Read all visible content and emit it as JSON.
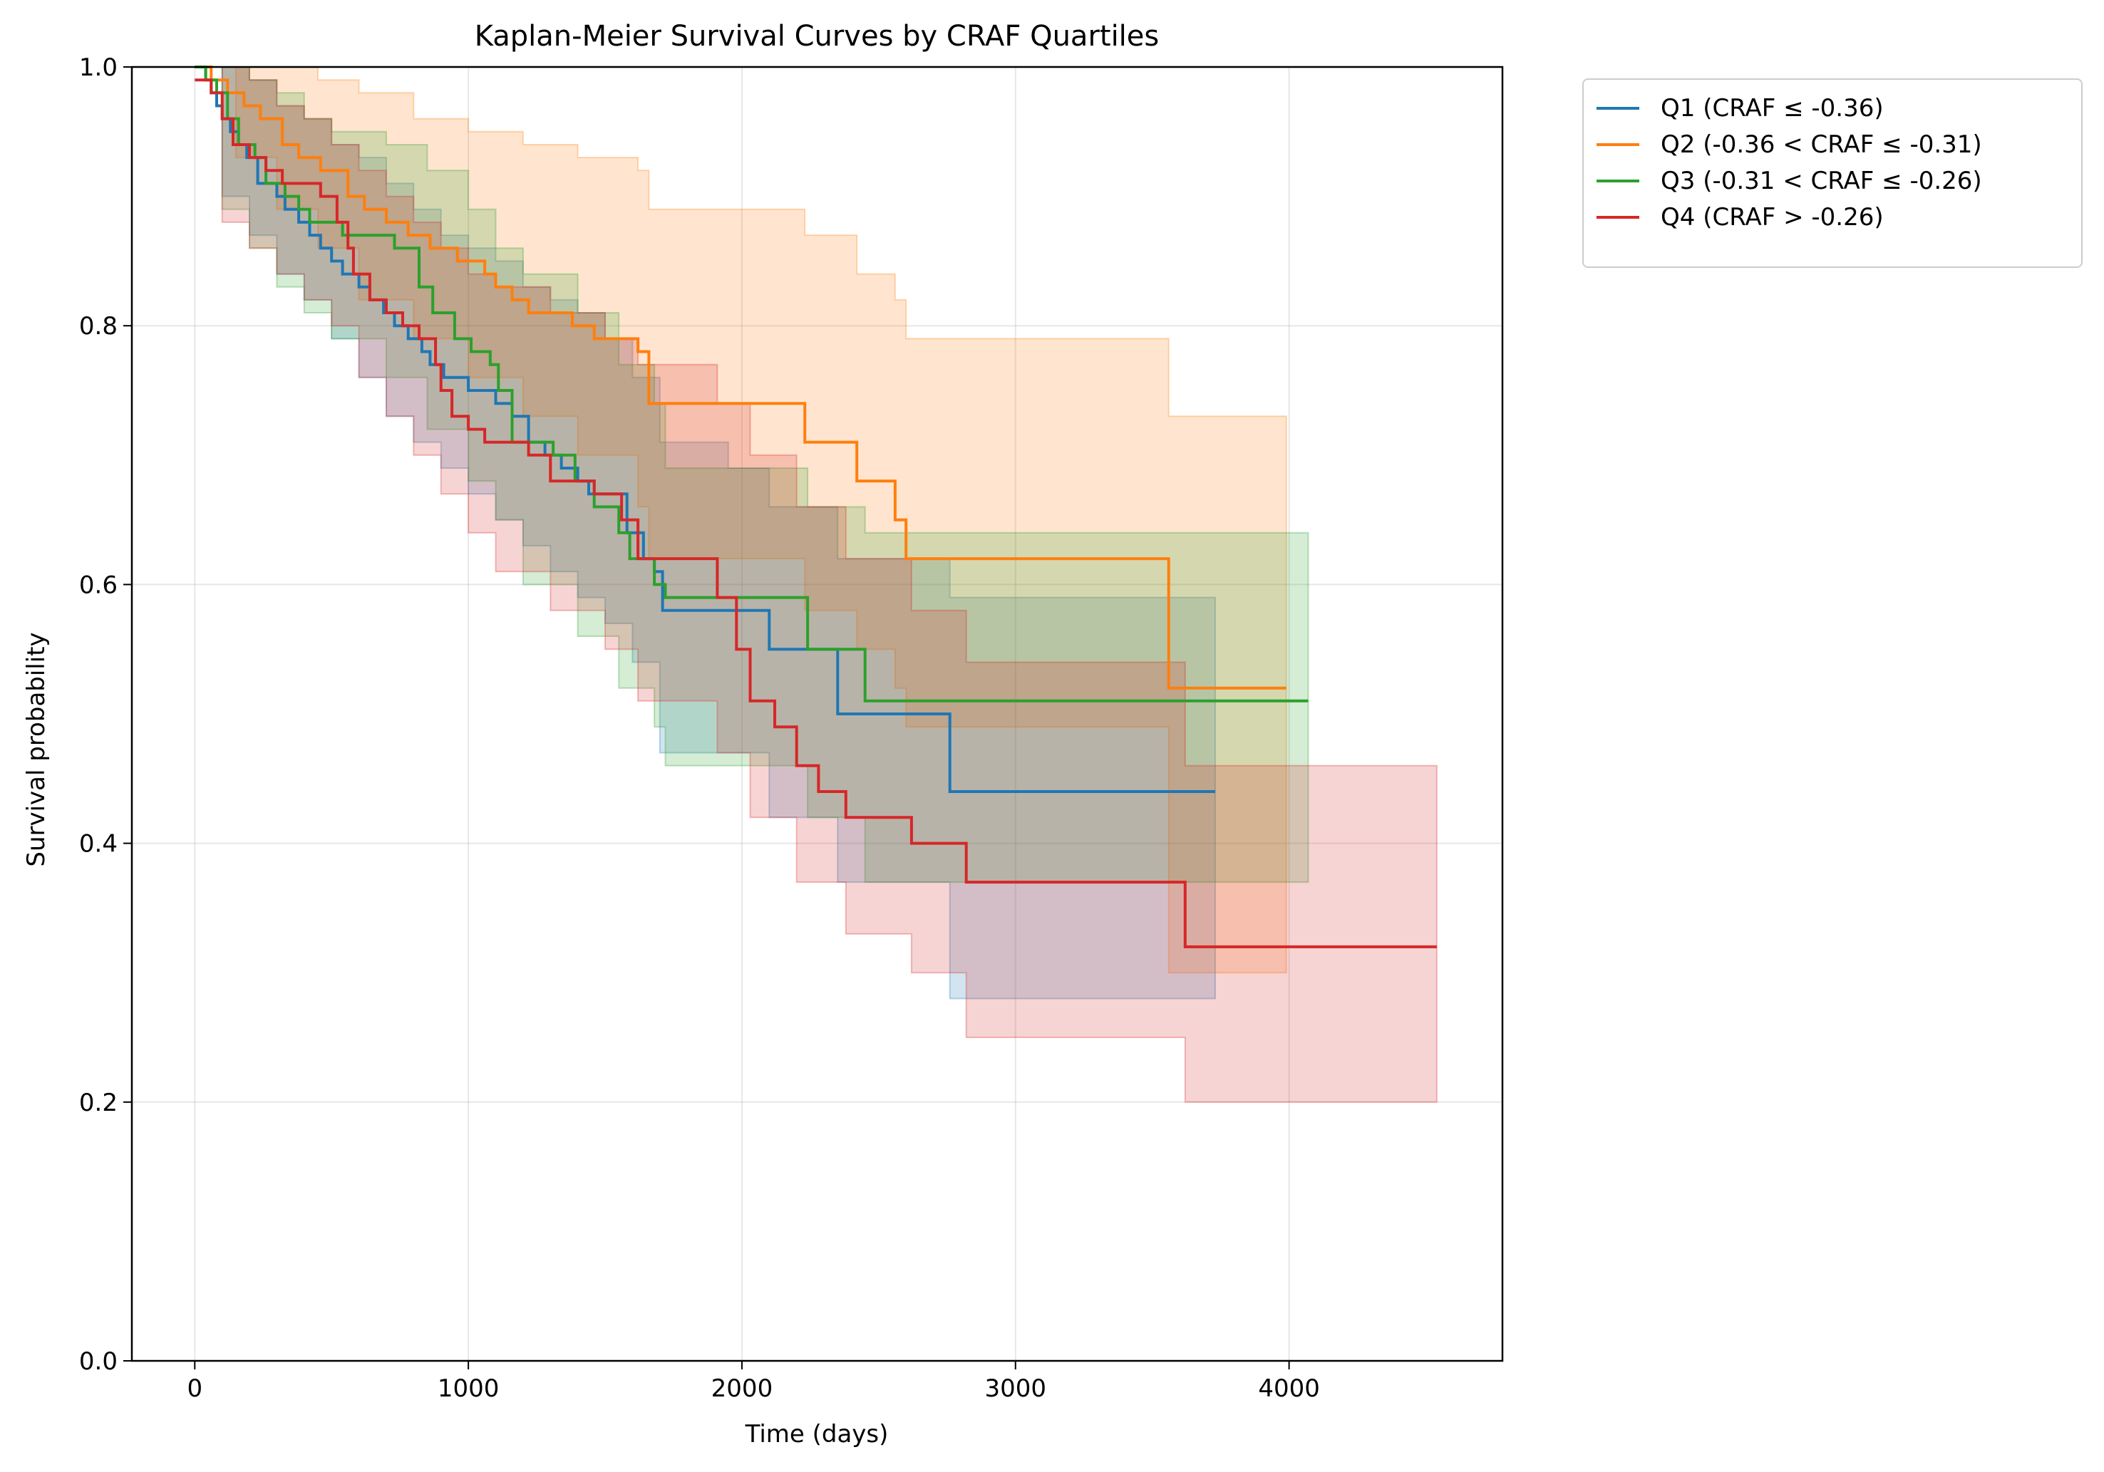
{
  "chart_data": {
    "type": "line",
    "title": "Kaplan-Meier Survival Curves by CRAF Quartiles",
    "xlabel": "Time (days)",
    "ylabel": "Survival probability",
    "xlim": [
      -230,
      4780
    ],
    "ylim": [
      0.0,
      1.0
    ],
    "xticks": [
      "0",
      "1000",
      "2000",
      "3000",
      "4000"
    ],
    "yticks": [
      "0.0",
      "0.2",
      "0.4",
      "0.6",
      "0.8",
      "1.0"
    ],
    "grid": true,
    "legend_position": "outside-top-right",
    "series": [
      {
        "name": "Q1 (CRAF ≤ -0.36)",
        "color": "#1f77b4",
        "steps": [
          [
            0,
            1.0
          ],
          [
            40,
            0.99
          ],
          [
            60,
            0.98
          ],
          [
            80,
            0.97
          ],
          [
            100,
            0.96
          ],
          [
            130,
            0.95
          ],
          [
            160,
            0.94
          ],
          [
            190,
            0.93
          ],
          [
            230,
            0.91
          ],
          [
            300,
            0.9
          ],
          [
            330,
            0.89
          ],
          [
            380,
            0.88
          ],
          [
            420,
            0.87
          ],
          [
            460,
            0.86
          ],
          [
            500,
            0.85
          ],
          [
            540,
            0.84
          ],
          [
            600,
            0.83
          ],
          [
            640,
            0.82
          ],
          [
            690,
            0.81
          ],
          [
            730,
            0.8
          ],
          [
            780,
            0.79
          ],
          [
            830,
            0.78
          ],
          [
            860,
            0.77
          ],
          [
            910,
            0.76
          ],
          [
            1000,
            0.75
          ],
          [
            1100,
            0.74
          ],
          [
            1160,
            0.73
          ],
          [
            1220,
            0.71
          ],
          [
            1280,
            0.7
          ],
          [
            1340,
            0.69
          ],
          [
            1400,
            0.68
          ],
          [
            1440,
            0.67
          ],
          [
            1580,
            0.64
          ],
          [
            1640,
            0.62
          ],
          [
            1680,
            0.61
          ],
          [
            1710,
            0.58
          ],
          [
            1950,
            0.58
          ],
          [
            2100,
            0.55
          ],
          [
            2350,
            0.5
          ],
          [
            2760,
            0.44
          ],
          [
            3730,
            0.44
          ]
        ],
        "ci_steps": [
          [
            0,
            1.0,
            1.0
          ],
          [
            100,
            1.0,
            0.9
          ],
          [
            200,
            0.99,
            0.87
          ],
          [
            300,
            0.97,
            0.84
          ],
          [
            400,
            0.96,
            0.82
          ],
          [
            500,
            0.94,
            0.79
          ],
          [
            600,
            0.93,
            0.76
          ],
          [
            700,
            0.91,
            0.73
          ],
          [
            800,
            0.89,
            0.71
          ],
          [
            900,
            0.87,
            0.69
          ],
          [
            1000,
            0.86,
            0.67
          ],
          [
            1100,
            0.85,
            0.65
          ],
          [
            1200,
            0.83,
            0.63
          ],
          [
            1300,
            0.82,
            0.61
          ],
          [
            1400,
            0.81,
            0.59
          ],
          [
            1500,
            0.79,
            0.57
          ],
          [
            1600,
            0.76,
            0.54
          ],
          [
            1700,
            0.71,
            0.47
          ],
          [
            1950,
            0.69,
            0.47
          ],
          [
            2100,
            0.66,
            0.42
          ],
          [
            2350,
            0.62,
            0.37
          ],
          [
            2760,
            0.59,
            0.28
          ],
          [
            3730,
            0.59,
            0.28
          ]
        ]
      },
      {
        "name": "Q2 (-0.36 < CRAF ≤ -0.31)",
        "color": "#ff7f0e",
        "steps": [
          [
            0,
            1.0
          ],
          [
            60,
            0.99
          ],
          [
            120,
            0.98
          ],
          [
            180,
            0.97
          ],
          [
            240,
            0.96
          ],
          [
            320,
            0.94
          ],
          [
            380,
            0.93
          ],
          [
            460,
            0.92
          ],
          [
            560,
            0.9
          ],
          [
            620,
            0.89
          ],
          [
            700,
            0.88
          ],
          [
            780,
            0.87
          ],
          [
            860,
            0.86
          ],
          [
            960,
            0.85
          ],
          [
            1060,
            0.84
          ],
          [
            1100,
            0.83
          ],
          [
            1160,
            0.82
          ],
          [
            1220,
            0.81
          ],
          [
            1380,
            0.8
          ],
          [
            1460,
            0.79
          ],
          [
            1620,
            0.78
          ],
          [
            1660,
            0.74
          ],
          [
            2230,
            0.71
          ],
          [
            2420,
            0.68
          ],
          [
            2560,
            0.65
          ],
          [
            2600,
            0.62
          ],
          [
            3560,
            0.52
          ],
          [
            3990,
            0.52
          ]
        ],
        "ci_steps": [
          [
            0,
            1.0,
            1.0
          ],
          [
            150,
            1.0,
            0.93
          ],
          [
            300,
            1.0,
            0.89
          ],
          [
            450,
            0.99,
            0.86
          ],
          [
            600,
            0.98,
            0.82
          ],
          [
            800,
            0.96,
            0.79
          ],
          [
            1000,
            0.95,
            0.76
          ],
          [
            1200,
            0.94,
            0.73
          ],
          [
            1400,
            0.93,
            0.7
          ],
          [
            1620,
            0.92,
            0.66
          ],
          [
            1660,
            0.89,
            0.62
          ],
          [
            2230,
            0.87,
            0.58
          ],
          [
            2420,
            0.84,
            0.55
          ],
          [
            2560,
            0.82,
            0.52
          ],
          [
            2600,
            0.79,
            0.49
          ],
          [
            3560,
            0.73,
            0.3
          ],
          [
            3990,
            0.7,
            0.3
          ]
        ]
      },
      {
        "name": "Q3 (-0.31 < CRAF ≤ -0.26)",
        "color": "#2ca02c",
        "steps": [
          [
            0,
            1.0
          ],
          [
            40,
            0.99
          ],
          [
            80,
            0.98
          ],
          [
            120,
            0.96
          ],
          [
            160,
            0.94
          ],
          [
            220,
            0.93
          ],
          [
            260,
            0.91
          ],
          [
            330,
            0.9
          ],
          [
            380,
            0.89
          ],
          [
            420,
            0.88
          ],
          [
            540,
            0.87
          ],
          [
            730,
            0.86
          ],
          [
            820,
            0.83
          ],
          [
            870,
            0.81
          ],
          [
            950,
            0.79
          ],
          [
            1010,
            0.78
          ],
          [
            1080,
            0.77
          ],
          [
            1110,
            0.75
          ],
          [
            1160,
            0.71
          ],
          [
            1310,
            0.7
          ],
          [
            1390,
            0.68
          ],
          [
            1460,
            0.66
          ],
          [
            1550,
            0.64
          ],
          [
            1590,
            0.62
          ],
          [
            1680,
            0.6
          ],
          [
            1720,
            0.59
          ],
          [
            2240,
            0.55
          ],
          [
            2450,
            0.51
          ],
          [
            4070,
            0.51
          ]
        ],
        "ci_steps": [
          [
            0,
            1.0,
            1.0
          ],
          [
            100,
            1.0,
            0.89
          ],
          [
            200,
            0.99,
            0.86
          ],
          [
            300,
            0.98,
            0.83
          ],
          [
            400,
            0.96,
            0.81
          ],
          [
            500,
            0.95,
            0.79
          ],
          [
            700,
            0.94,
            0.76
          ],
          [
            850,
            0.92,
            0.72
          ],
          [
            1000,
            0.89,
            0.68
          ],
          [
            1100,
            0.86,
            0.65
          ],
          [
            1200,
            0.84,
            0.6
          ],
          [
            1400,
            0.81,
            0.56
          ],
          [
            1550,
            0.77,
            0.52
          ],
          [
            1680,
            0.74,
            0.49
          ],
          [
            1720,
            0.69,
            0.46
          ],
          [
            2240,
            0.66,
            0.42
          ],
          [
            2450,
            0.64,
            0.37
          ],
          [
            4070,
            0.64,
            0.37
          ]
        ]
      },
      {
        "name": "Q4 (CRAF > -0.26)",
        "color": "#d62728",
        "steps": [
          [
            0,
            0.99
          ],
          [
            60,
            0.98
          ],
          [
            100,
            0.96
          ],
          [
            140,
            0.94
          ],
          [
            200,
            0.93
          ],
          [
            260,
            0.92
          ],
          [
            320,
            0.91
          ],
          [
            460,
            0.9
          ],
          [
            520,
            0.88
          ],
          [
            560,
            0.86
          ],
          [
            580,
            0.84
          ],
          [
            640,
            0.82
          ],
          [
            700,
            0.81
          ],
          [
            760,
            0.8
          ],
          [
            820,
            0.79
          ],
          [
            880,
            0.77
          ],
          [
            900,
            0.75
          ],
          [
            940,
            0.73
          ],
          [
            1000,
            0.72
          ],
          [
            1060,
            0.71
          ],
          [
            1220,
            0.7
          ],
          [
            1300,
            0.68
          ],
          [
            1460,
            0.67
          ],
          [
            1560,
            0.65
          ],
          [
            1620,
            0.62
          ],
          [
            1910,
            0.59
          ],
          [
            1980,
            0.55
          ],
          [
            2030,
            0.51
          ],
          [
            2120,
            0.49
          ],
          [
            2200,
            0.46
          ],
          [
            2280,
            0.44
          ],
          [
            2380,
            0.42
          ],
          [
            2620,
            0.4
          ],
          [
            2820,
            0.37
          ],
          [
            3620,
            0.32
          ],
          [
            4540,
            0.32
          ]
        ],
        "ci_steps": [
          [
            0,
            1.0,
            1.0
          ],
          [
            100,
            1.0,
            0.88
          ],
          [
            200,
            0.99,
            0.86
          ],
          [
            300,
            0.97,
            0.84
          ],
          [
            400,
            0.96,
            0.82
          ],
          [
            500,
            0.94,
            0.8
          ],
          [
            600,
            0.92,
            0.76
          ],
          [
            700,
            0.9,
            0.73
          ],
          [
            800,
            0.88,
            0.7
          ],
          [
            900,
            0.86,
            0.67
          ],
          [
            1000,
            0.84,
            0.64
          ],
          [
            1100,
            0.83,
            0.61
          ],
          [
            1300,
            0.81,
            0.58
          ],
          [
            1500,
            0.79,
            0.55
          ],
          [
            1620,
            0.77,
            0.51
          ],
          [
            1910,
            0.74,
            0.47
          ],
          [
            2030,
            0.7,
            0.42
          ],
          [
            2200,
            0.66,
            0.37
          ],
          [
            2380,
            0.62,
            0.33
          ],
          [
            2620,
            0.58,
            0.3
          ],
          [
            2820,
            0.54,
            0.25
          ],
          [
            3620,
            0.46,
            0.2
          ],
          [
            4540,
            0.46,
            0.2
          ]
        ]
      }
    ]
  }
}
